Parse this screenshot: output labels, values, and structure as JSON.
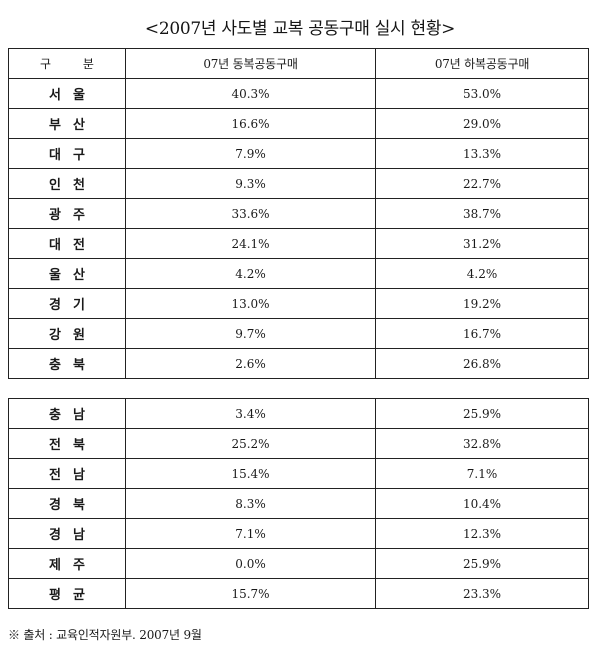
{
  "title": "<2007년 사도별 교복 공동구매 실시 현황>",
  "columns": [
    "구 분",
    "07년 동복공동구매",
    "07년 하복공동구매"
  ],
  "table1": [
    {
      "region": "서울",
      "winter": "40.3%",
      "summer": "53.0%"
    },
    {
      "region": "부산",
      "winter": "16.6%",
      "summer": "29.0%"
    },
    {
      "region": "대구",
      "winter": "7.9%",
      "summer": "13.3%"
    },
    {
      "region": "인천",
      "winter": "9.3%",
      "summer": "22.7%"
    },
    {
      "region": "광주",
      "winter": "33.6%",
      "summer": "38.7%"
    },
    {
      "region": "대전",
      "winter": "24.1%",
      "summer": "31.2%"
    },
    {
      "region": "울산",
      "winter": "4.2%",
      "summer": "4.2%"
    },
    {
      "region": "경기",
      "winter": "13.0%",
      "summer": "19.2%"
    },
    {
      "region": "강원",
      "winter": "9.7%",
      "summer": "16.7%"
    },
    {
      "region": "충북",
      "winter": "2.6%",
      "summer": "26.8%"
    }
  ],
  "table2": [
    {
      "region": "충남",
      "winter": "3.4%",
      "summer": "25.9%"
    },
    {
      "region": "전북",
      "winter": "25.2%",
      "summer": "32.8%"
    },
    {
      "region": "전남",
      "winter": "15.4%",
      "summer": "7.1%"
    },
    {
      "region": "경북",
      "winter": "8.3%",
      "summer": "10.4%"
    },
    {
      "region": "경남",
      "winter": "7.1%",
      "summer": "12.3%"
    },
    {
      "region": "제주",
      "winter": "0.0%",
      "summer": "25.9%"
    },
    {
      "region": "평균",
      "winter": "15.7%",
      "summer": "23.3%"
    }
  ],
  "source": "※ 출처 : 교육인적자원부. 2007년 9월"
}
